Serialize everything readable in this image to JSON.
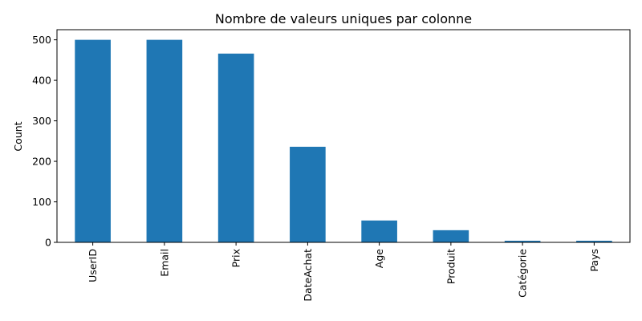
{
  "chart_data": {
    "type": "bar",
    "title": "Nombre de valeurs uniques par colonne",
    "xlabel": "",
    "ylabel": "Count",
    "categories": [
      "UserID",
      "Email",
      "Prix",
      "DateAchat",
      "Age",
      "Produit",
      "Catégorie",
      "Pays"
    ],
    "values": [
      500,
      500,
      466,
      236,
      54,
      30,
      4,
      4
    ],
    "ylim": [
      0,
      525
    ],
    "yticks": [
      0,
      100,
      200,
      300,
      400,
      500
    ],
    "grid": false,
    "legend": "none",
    "bar_color": "#1f77b4"
  }
}
